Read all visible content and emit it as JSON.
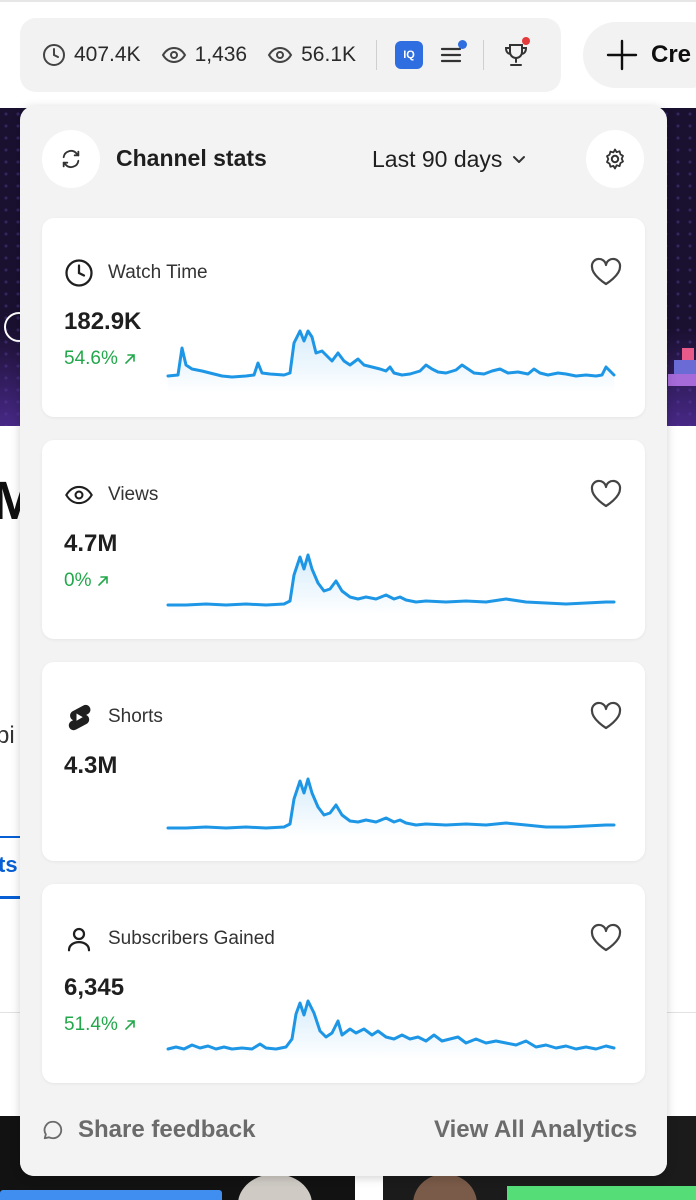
{
  "toolbar": {
    "stats": [
      {
        "icon": "clock-icon",
        "value": "407.4K"
      },
      {
        "icon": "eye-icon",
        "value": "1,436"
      },
      {
        "icon": "eye-icon",
        "value": "56.1K"
      }
    ],
    "iq_label": "IQ",
    "create_label": "Cre"
  },
  "panel": {
    "title": "Channel stats",
    "range": "Last 90 days"
  },
  "cards": [
    {
      "label": "Watch Time",
      "icon": "clock-icon",
      "value": "182.9K",
      "change": "54.6%"
    },
    {
      "label": "Views",
      "icon": "eye-icon",
      "value": "4.7M",
      "change": "0%"
    },
    {
      "label": "Shorts",
      "icon": "shorts-icon",
      "value": "4.3M",
      "change": ""
    },
    {
      "label": "Subscribers Gained",
      "icon": "person-icon",
      "value": "6,345",
      "change": "51.4%"
    }
  ],
  "footer": {
    "feedback_label": "Share feedback",
    "view_all_label": "View All Analytics"
  },
  "background": {
    "big_letter": "M",
    "partial_text": "pi",
    "tab_text": "ts"
  },
  "colors": {
    "accent": "#1e96e6",
    "positive": "#22a84a",
    "badge_blue": "#2f6ee0",
    "badge_red": "#e33b3b"
  }
}
